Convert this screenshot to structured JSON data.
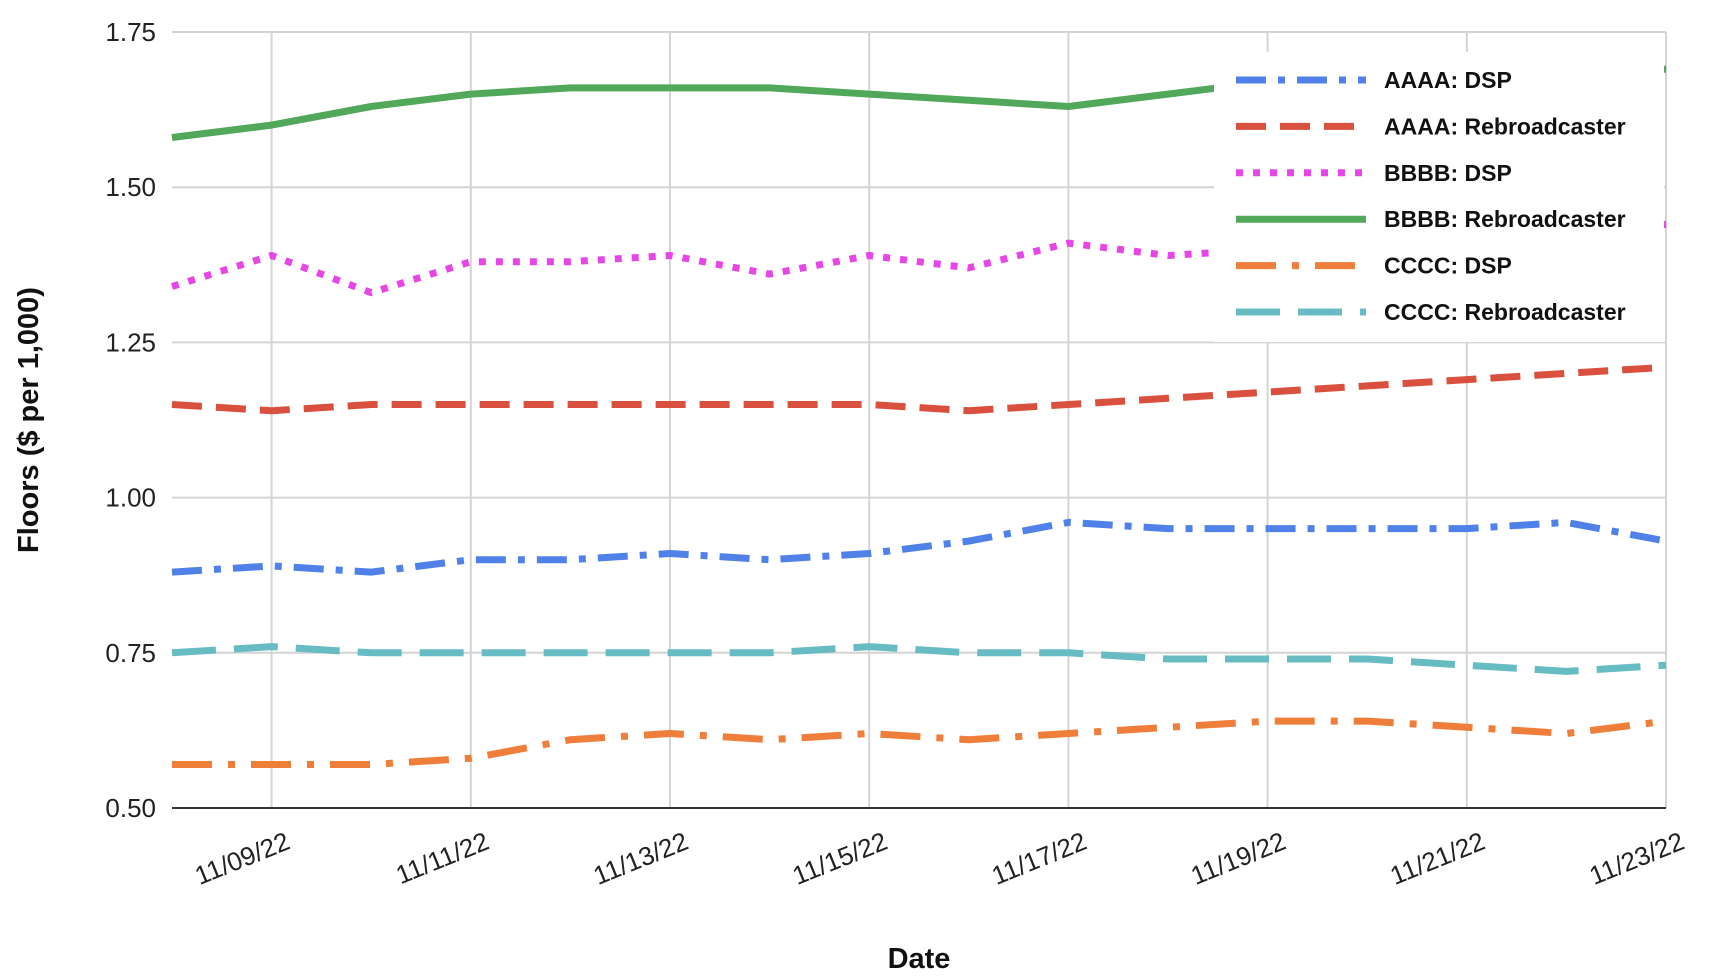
{
  "chart_data": {
    "type": "line",
    "xlabel": "Date",
    "ylabel": "Floors ($ per 1,000)",
    "ylim": [
      0.5,
      1.75
    ],
    "y_ticks": [
      "0.50",
      "0.75",
      "1.00",
      "1.25",
      "1.50",
      "1.75"
    ],
    "x": [
      "11/08/22",
      "11/09/22",
      "11/10/22",
      "11/11/22",
      "11/12/22",
      "11/13/22",
      "11/14/22",
      "11/15/22",
      "11/16/22",
      "11/17/22",
      "11/18/22",
      "11/19/22",
      "11/20/22",
      "11/21/22",
      "11/22/22",
      "11/23/22"
    ],
    "x_tick_labels": [
      "11/09/22",
      "11/11/22",
      "11/13/22",
      "11/15/22",
      "11/17/22",
      "11/19/22",
      "11/21/22",
      "11/23/22"
    ],
    "grid": true,
    "legend_position": "top-right",
    "series": [
      {
        "name": "AAAA: DSP",
        "color": "#4f81e8",
        "style": "dash-dot",
        "values": [
          0.88,
          0.89,
          0.88,
          0.9,
          0.9,
          0.91,
          0.9,
          0.91,
          0.93,
          0.96,
          0.95,
          0.95,
          0.95,
          0.95,
          0.96,
          0.93
        ]
      },
      {
        "name": "AAAA: Rebroadcaster",
        "color": "#d9503f",
        "style": "dashed",
        "values": [
          1.15,
          1.14,
          1.15,
          1.15,
          1.15,
          1.15,
          1.15,
          1.15,
          1.14,
          1.15,
          1.16,
          1.17,
          1.18,
          1.19,
          1.2,
          1.21
        ]
      },
      {
        "name": "BBBB: DSP",
        "color": "#e546e5",
        "style": "dotted",
        "values": [
          1.34,
          1.39,
          1.33,
          1.38,
          1.38,
          1.39,
          1.36,
          1.39,
          1.37,
          1.41,
          1.39,
          1.4,
          1.41,
          1.42,
          1.43,
          1.44
        ]
      },
      {
        "name": "BBBB: Rebroadcaster",
        "color": "#52a85a",
        "style": "solid",
        "values": [
          1.58,
          1.6,
          1.63,
          1.65,
          1.66,
          1.66,
          1.66,
          1.65,
          1.64,
          1.63,
          1.65,
          1.67,
          1.68,
          1.68,
          1.69,
          1.69
        ]
      },
      {
        "name": "CCCC: DSP",
        "color": "#ee7e3a",
        "style": "long-dash-dot",
        "values": [
          0.57,
          0.57,
          0.57,
          0.58,
          0.61,
          0.62,
          0.61,
          0.62,
          0.61,
          0.62,
          0.63,
          0.64,
          0.64,
          0.63,
          0.62,
          0.64
        ]
      },
      {
        "name": "CCCC: Rebroadcaster",
        "color": "#67bcc4",
        "style": "long-dash",
        "values": [
          0.75,
          0.76,
          0.75,
          0.75,
          0.75,
          0.75,
          0.75,
          0.76,
          0.75,
          0.75,
          0.74,
          0.74,
          0.74,
          0.73,
          0.72,
          0.73
        ]
      }
    ]
  }
}
